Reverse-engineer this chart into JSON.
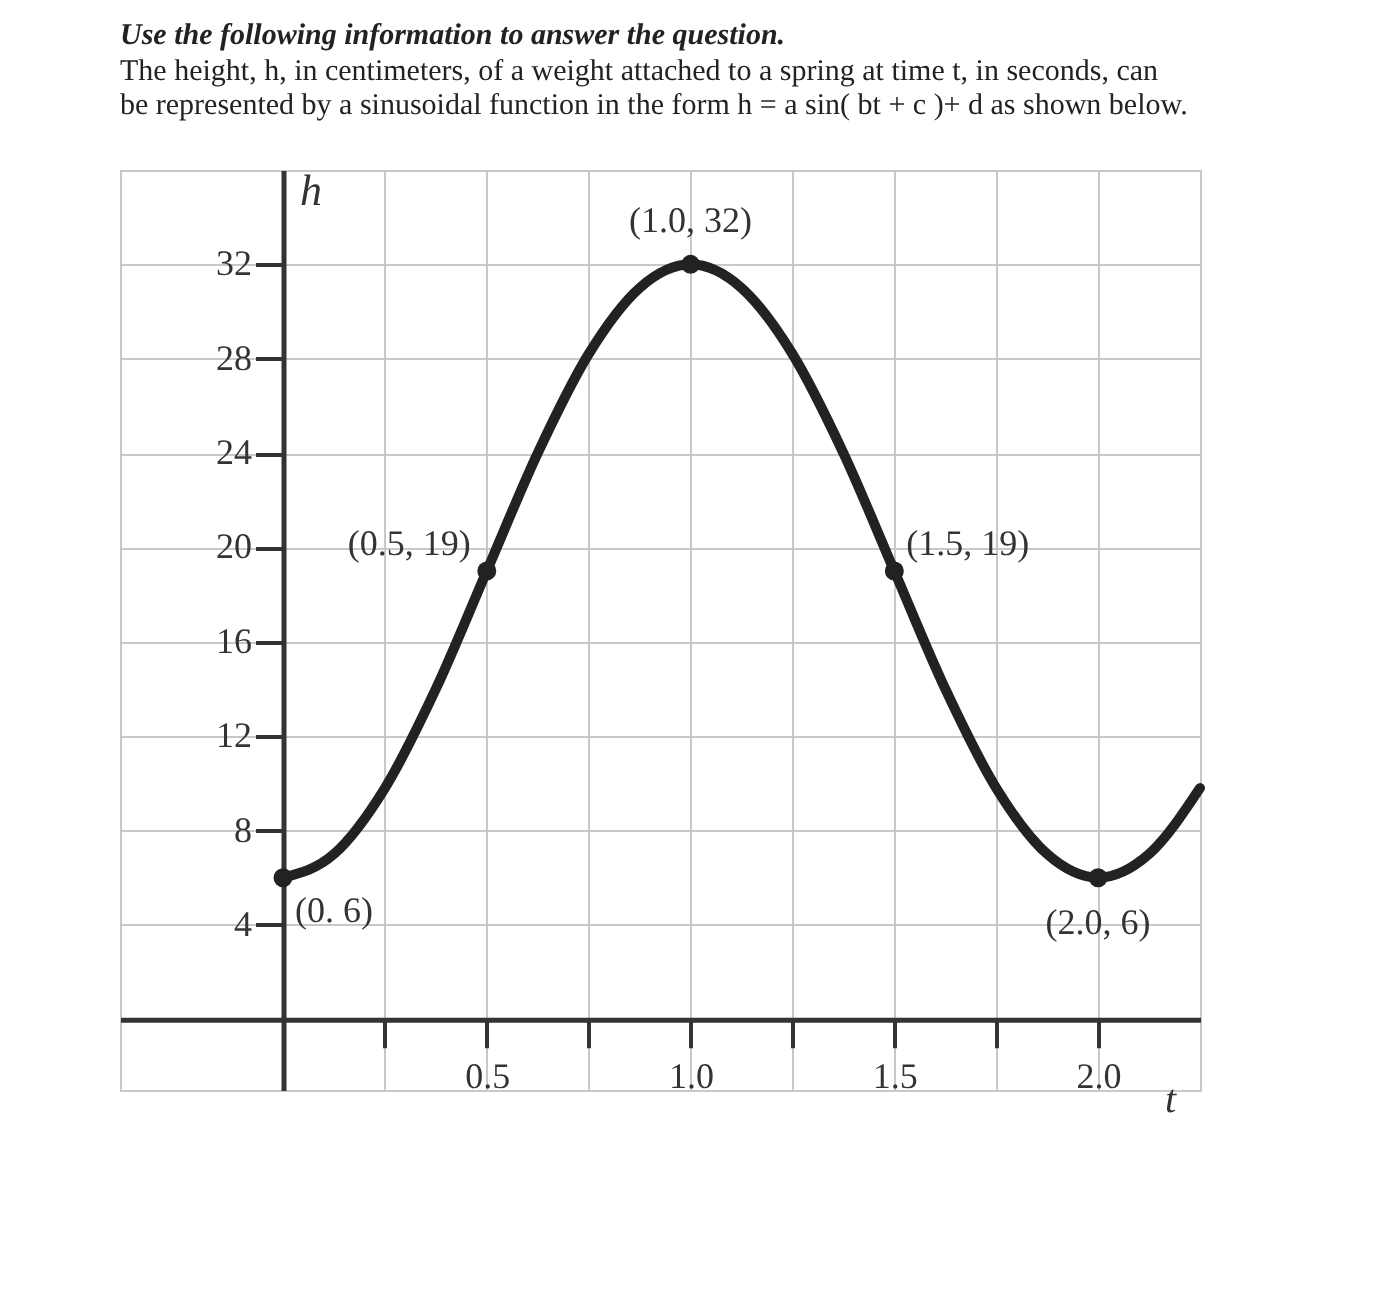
{
  "chart_data": {
    "type": "line",
    "title": "Use the following information to answer the question.",
    "subtitle": "The height, h, in centimeters, of a weight attached to a spring at time t, in seconds, can be represented by a sinusoidal function in the form h = a sin( bt + c )+ d as shown below.",
    "xlabel": "t",
    "ylabel": "h",
    "series": [
      {
        "type": "line",
        "color": "#222222",
        "x": [
          0,
          0.125,
          0.25,
          0.375,
          0.5,
          0.625,
          0.75,
          0.875,
          1,
          1.125,
          1.25,
          1.375,
          1.5,
          1.625,
          1.75,
          1.875,
          2,
          2.125,
          2.25
        ],
        "values": [
          6,
          7.0,
          9.8,
          14.0,
          19,
          24.0,
          28.2,
          31.0,
          32,
          31.0,
          28.2,
          24.0,
          19,
          14.0,
          9.8,
          7.0,
          6,
          7.0,
          9.8
        ]
      },
      {
        "type": "scatter",
        "color": "#222222",
        "marker": "circle",
        "x": [
          0,
          0.5,
          1,
          1.5,
          2
        ],
        "values": [
          6,
          19,
          32,
          19,
          6
        ]
      }
    ],
    "annotations": [
      {
        "text": "(0. 6)",
        "x": 0,
        "y": 6
      },
      {
        "text": "(0.5, 19)",
        "x": 0.5,
        "y": 19
      },
      {
        "text": "(1.0, 32)",
        "x": 1,
        "y": 32
      },
      {
        "text": "(1.5, 19)",
        "x": 1.5,
        "y": 19
      },
      {
        "text": "(2.0, 6)",
        "x": 2,
        "y": 6
      }
    ],
    "xlim": [
      -0.4,
      2.25
    ],
    "xticks": [
      {
        "value": 0.25,
        "label": null
      },
      0.5,
      {
        "value": 0.75,
        "label": null
      },
      {
        "value": 1,
        "label": "1.0"
      },
      {
        "value": 1.25,
        "label": null
      },
      1.5,
      {
        "value": 1.75,
        "label": null
      },
      {
        "value": 2,
        "label": "2.0"
      }
    ],
    "ylim": [
      -3,
      36
    ],
    "yticks": [
      4,
      8,
      12,
      16,
      20,
      24,
      28,
      32
    ],
    "grid": true
  }
}
